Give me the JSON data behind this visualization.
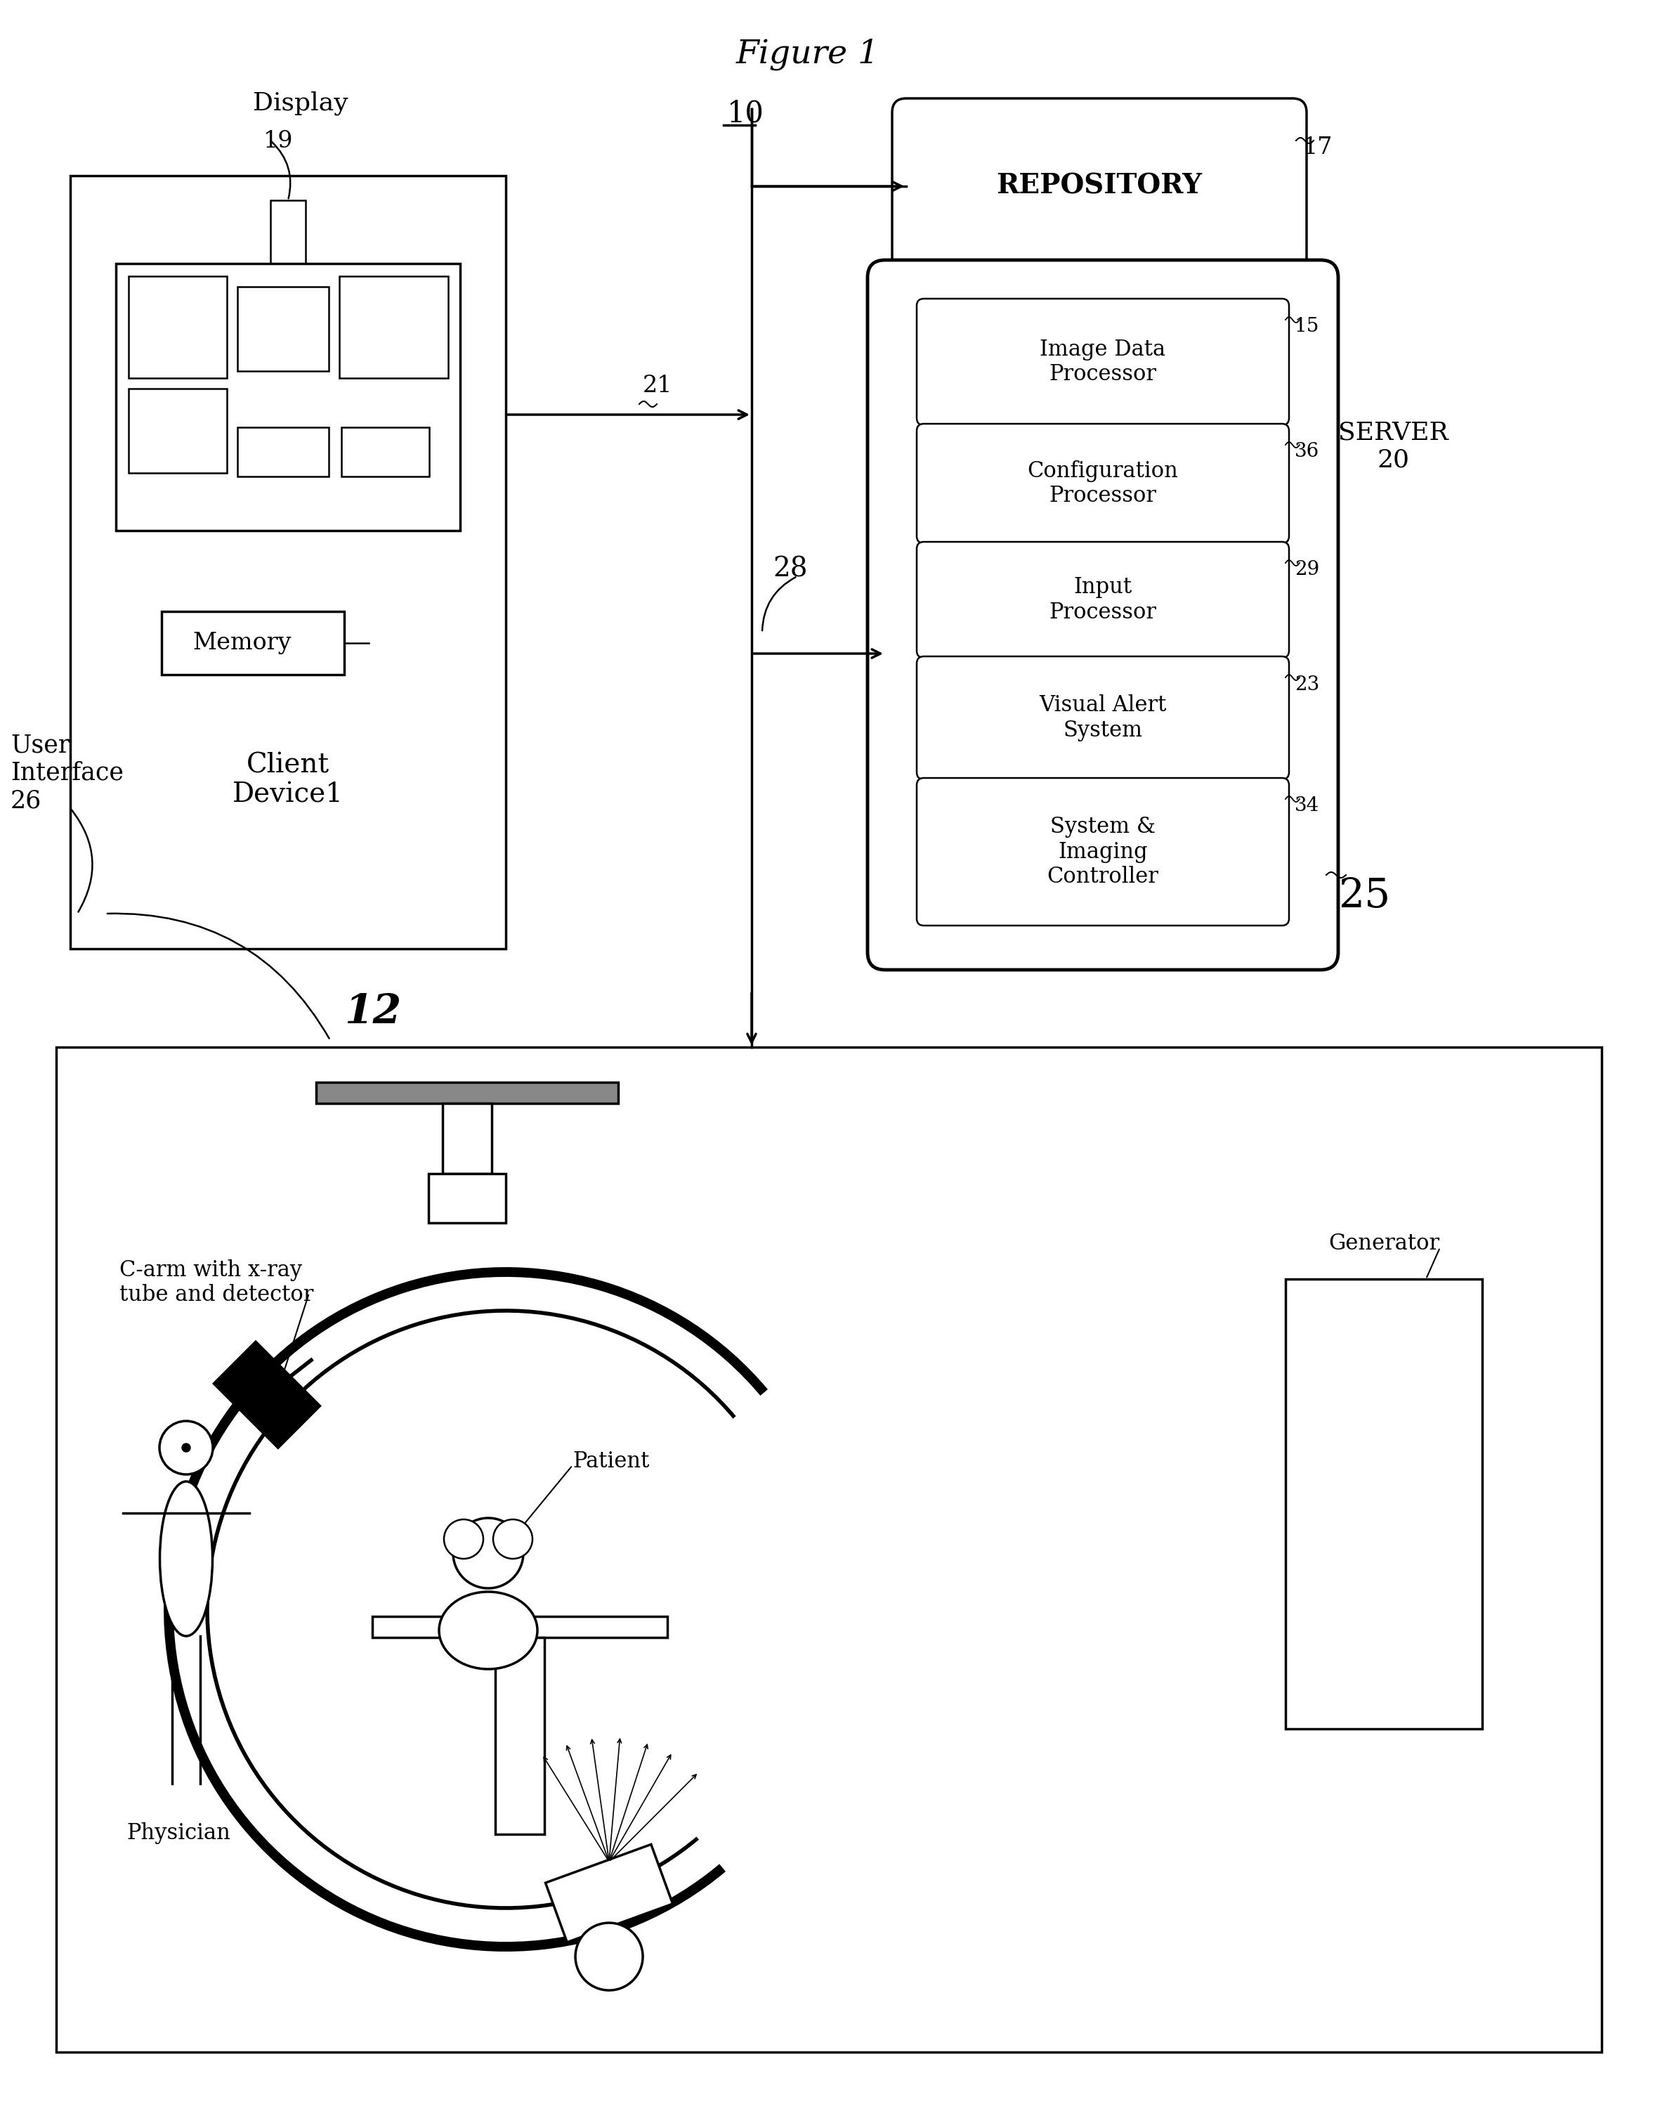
{
  "bg_color": "#ffffff",
  "title": "Figure 1",
  "system_num": "10",
  "repository_text": "REPOSITORY",
  "repository_num": "17",
  "server_text": "SERVER\n20",
  "server_num": "25",
  "processors": [
    {
      "text": "Image Data\nProcessor",
      "num": "15"
    },
    {
      "text": "Configuration\nProcessor",
      "num": "36"
    },
    {
      "text": "Input\nProcessor",
      "num": "29"
    },
    {
      "text": "Visual Alert\nSystem",
      "num": "23"
    },
    {
      "text": "System &\nImaging\nController",
      "num": "34"
    }
  ],
  "client_text": "Client\nDevice1",
  "client_num": "12",
  "display_text": "Display",
  "display_num": "19",
  "memory_text": "Memory",
  "ui_text": "User\nInterface\n26",
  "conn_21": "21",
  "conn_28": "28",
  "physician_text": "Physician",
  "patient_text": "Patient",
  "generator_text": "Generator",
  "c_arm_text": "C-arm with x-ray\ntube and detector"
}
